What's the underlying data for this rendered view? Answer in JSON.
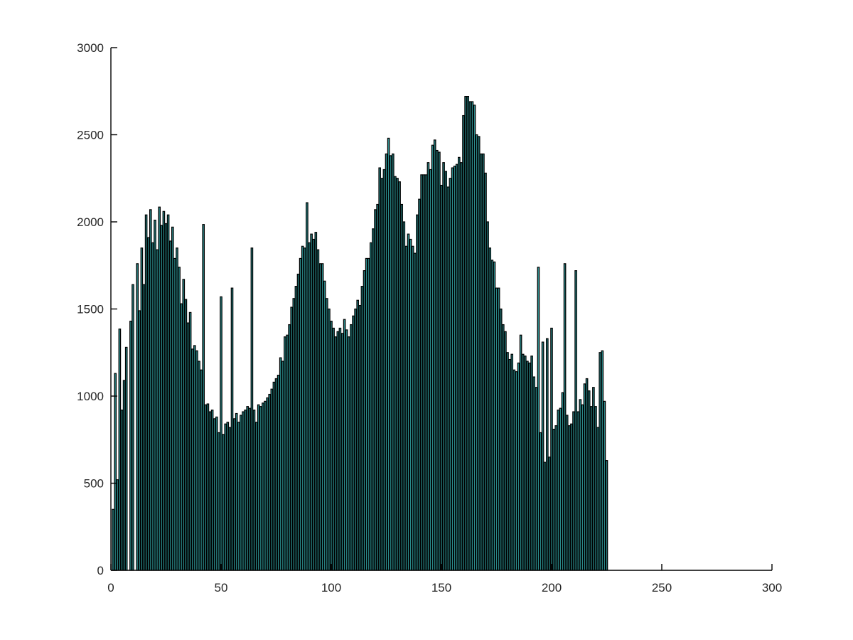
{
  "chart_data": {
    "type": "bar",
    "title": "",
    "xlabel": "",
    "ylabel": "",
    "xlim": [
      0,
      300
    ],
    "ylim": [
      0,
      3000
    ],
    "xticks": [
      "0",
      "50",
      "100",
      "150",
      "200",
      "250",
      "300"
    ],
    "yticks": [
      "0",
      "500",
      "1000",
      "1500",
      "2000",
      "2500",
      "3000"
    ],
    "grid": false,
    "legend": "none",
    "bar_color": "#2a8a8a",
    "edge_color": "#000000",
    "series": [
      {
        "x_start": 1,
        "values": [
          350,
          1130,
          520,
          1385,
          920,
          1090,
          1280,
          0,
          1430,
          1640,
          0,
          1760,
          1490,
          1850,
          1640,
          2040,
          1910,
          2070,
          1880,
          2010,
          1840,
          2085,
          1980,
          2060,
          1990,
          2040,
          1890,
          1970,
          1790,
          1850,
          1740,
          1530,
          1670,
          1555,
          1420,
          1480,
          1270,
          1290,
          1260,
          1200,
          1150,
          1985,
          950,
          955,
          910,
          920,
          870,
          880,
          790,
          1570,
          780,
          840,
          850,
          820,
          1620,
          870,
          900,
          850,
          890,
          910,
          920,
          940,
          930,
          1850,
          920,
          850,
          950,
          940,
          960,
          970,
          990,
          1010,
          1040,
          1080,
          1100,
          1120,
          1220,
          1200,
          1340,
          1350,
          1410,
          1510,
          1560,
          1630,
          1700,
          1790,
          1860,
          1850,
          2110,
          1880,
          1930,
          1900,
          1940,
          1840,
          1760,
          1760,
          1660,
          1560,
          1500,
          1430,
          1390,
          1340,
          1370,
          1390,
          1360,
          1440,
          1380,
          1340,
          1410,
          1460,
          1500,
          1550,
          1520,
          1630,
          1720,
          1790,
          1790,
          1880,
          1960,
          2070,
          2100,
          2310,
          2250,
          2300,
          2390,
          2480,
          2380,
          2390,
          2260,
          2250,
          2230,
          2100,
          2000,
          1860,
          1930,
          1900,
          1860,
          1820,
          2040,
          2130,
          2270,
          2270,
          2270,
          2340,
          2300,
          2440,
          2470,
          2410,
          2400,
          2210,
          2340,
          2290,
          2200,
          2250,
          2310,
          2320,
          2330,
          2370,
          2340,
          2610,
          2720,
          2720,
          2690,
          2690,
          2670,
          2500,
          2490,
          2390,
          2390,
          2280,
          2000,
          1850,
          1780,
          1770,
          1620,
          1620,
          1500,
          1410,
          1370,
          1250,
          1210,
          1240,
          1150,
          1140,
          1190,
          1350,
          1240,
          1230,
          1200,
          1190,
          1230,
          1110,
          1050,
          1740,
          790,
          1310,
          620,
          1330,
          650,
          1390,
          810,
          830,
          920,
          930,
          1020,
          1760,
          890,
          830,
          840,
          910,
          1720,
          910,
          980,
          950,
          1070,
          1100,
          1030,
          940,
          1050,
          940,
          820,
          1250,
          1260,
          970,
          630
        ]
      }
    ]
  }
}
